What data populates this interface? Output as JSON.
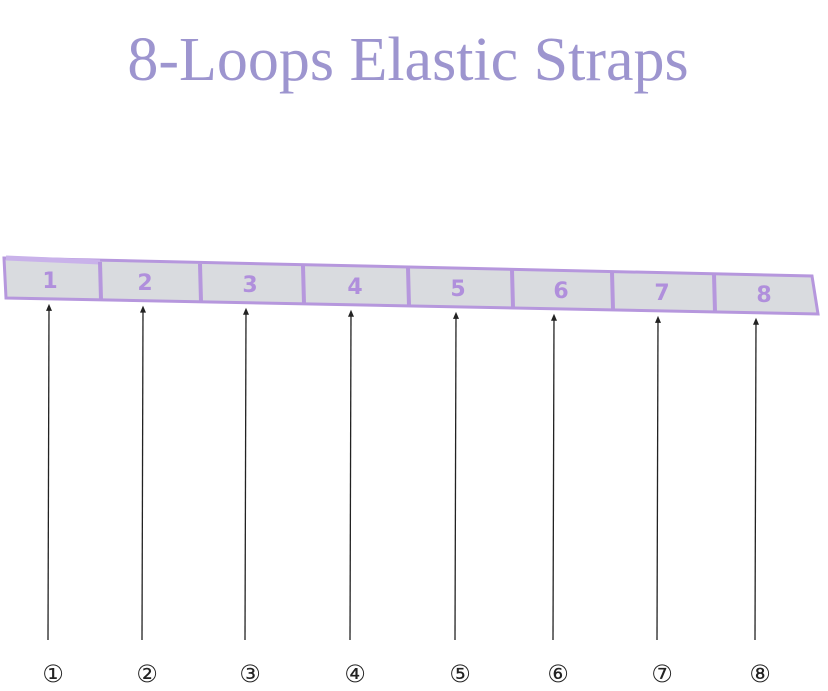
{
  "header": {
    "title": "8-Loops Elastic Straps"
  },
  "loops": [
    "1",
    "2",
    "3",
    "4",
    "5",
    "6",
    "7",
    "8"
  ],
  "markers": [
    "①",
    "②",
    "③",
    "④",
    "⑤",
    "⑥",
    "⑦",
    "⑧"
  ]
}
